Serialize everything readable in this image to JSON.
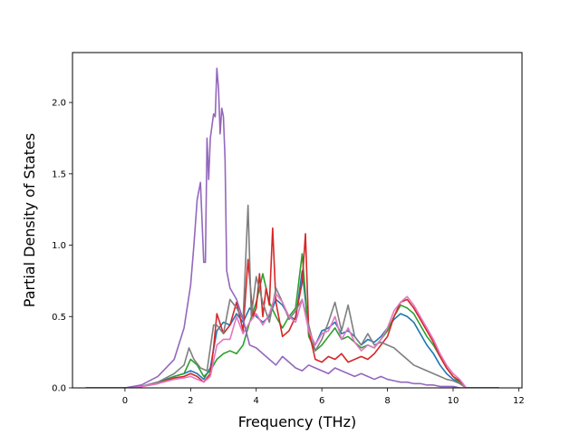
{
  "chart_data": {
    "type": "line",
    "title": "",
    "xlabel": "Frequency (THz)",
    "ylabel": "Partial Density of States",
    "xlim": [
      -1.6,
      12.1
    ],
    "ylim": [
      0.0,
      2.35
    ],
    "xticks": [
      0,
      2,
      4,
      6,
      8,
      10,
      12
    ],
    "yticks": [
      0.0,
      0.5,
      1.0,
      1.5,
      2.0
    ],
    "xtick_labels": [
      "0",
      "2",
      "4",
      "6",
      "8",
      "10",
      "12"
    ],
    "ytick_labels": [
      "0.0",
      "0.5",
      "1.0",
      "1.5",
      "2.0"
    ],
    "grid": false,
    "legend": "none",
    "series": [
      {
        "color": "#1f77b4",
        "x": [
          -1.2,
          0.0,
          0.5,
          1.0,
          1.5,
          1.8,
          2.0,
          2.2,
          2.4,
          2.6,
          2.8,
          3.0,
          3.2,
          3.4,
          3.6,
          3.8,
          4.0,
          4.2,
          4.4,
          4.6,
          4.8,
          5.0,
          5.2,
          5.4,
          5.6,
          5.8,
          6.0,
          6.2,
          6.4,
          6.6,
          6.8,
          7.0,
          7.2,
          7.4,
          7.6,
          7.8,
          8.0,
          8.2,
          8.4,
          8.6,
          8.8,
          9.0,
          9.2,
          9.4,
          9.6,
          9.8,
          10.0,
          10.2,
          10.4,
          11.4
        ],
        "y": [
          0.0,
          0.0,
          0.01,
          0.04,
          0.08,
          0.1,
          0.12,
          0.1,
          0.06,
          0.14,
          0.4,
          0.46,
          0.44,
          0.52,
          0.46,
          0.56,
          0.5,
          0.46,
          0.5,
          0.62,
          0.58,
          0.5,
          0.48,
          0.82,
          0.4,
          0.3,
          0.4,
          0.42,
          0.46,
          0.38,
          0.4,
          0.36,
          0.3,
          0.34,
          0.32,
          0.36,
          0.42,
          0.48,
          0.52,
          0.5,
          0.46,
          0.38,
          0.3,
          0.24,
          0.16,
          0.1,
          0.06,
          0.04,
          0.0,
          0.0
        ]
      },
      {
        "color": "#2ca02c",
        "x": [
          -1.2,
          0.0,
          0.5,
          1.0,
          1.5,
          1.8,
          2.0,
          2.2,
          2.4,
          2.6,
          2.8,
          3.0,
          3.2,
          3.4,
          3.6,
          3.8,
          4.0,
          4.2,
          4.4,
          4.6,
          4.8,
          5.0,
          5.2,
          5.4,
          5.6,
          5.8,
          6.0,
          6.2,
          6.4,
          6.6,
          6.8,
          7.0,
          7.2,
          7.4,
          7.6,
          7.8,
          8.0,
          8.2,
          8.4,
          8.6,
          8.8,
          9.0,
          9.2,
          9.4,
          9.6,
          9.8,
          10.0,
          10.2,
          10.4,
          11.4
        ],
        "y": [
          0.0,
          0.0,
          0.01,
          0.03,
          0.08,
          0.1,
          0.2,
          0.16,
          0.08,
          0.12,
          0.2,
          0.24,
          0.26,
          0.24,
          0.3,
          0.46,
          0.6,
          0.8,
          0.6,
          0.5,
          0.42,
          0.5,
          0.56,
          0.94,
          0.36,
          0.26,
          0.3,
          0.36,
          0.42,
          0.34,
          0.36,
          0.32,
          0.28,
          0.3,
          0.28,
          0.34,
          0.4,
          0.5,
          0.58,
          0.56,
          0.52,
          0.44,
          0.36,
          0.3,
          0.22,
          0.14,
          0.08,
          0.04,
          0.0,
          0.0
        ]
      },
      {
        "color": "#d62728",
        "x": [
          -1.2,
          0.0,
          0.5,
          1.0,
          1.5,
          1.8,
          2.0,
          2.2,
          2.4,
          2.6,
          2.7,
          2.8,
          3.0,
          3.2,
          3.4,
          3.6,
          3.75,
          3.9,
          4.0,
          4.1,
          4.2,
          4.3,
          4.4,
          4.5,
          4.6,
          4.7,
          4.8,
          5.0,
          5.2,
          5.4,
          5.5,
          5.6,
          5.8,
          6.0,
          6.2,
          6.4,
          6.6,
          6.8,
          7.0,
          7.2,
          7.4,
          7.6,
          7.8,
          8.0,
          8.2,
          8.4,
          8.6,
          8.8,
          9.0,
          9.2,
          9.4,
          9.6,
          9.8,
          10.0,
          10.2,
          10.4,
          11.4
        ],
        "y": [
          0.0,
          0.0,
          0.01,
          0.03,
          0.07,
          0.08,
          0.1,
          0.08,
          0.04,
          0.1,
          0.28,
          0.52,
          0.38,
          0.44,
          0.6,
          0.4,
          0.9,
          0.5,
          0.56,
          0.8,
          0.5,
          0.7,
          0.58,
          1.12,
          0.6,
          0.48,
          0.36,
          0.4,
          0.5,
          0.74,
          1.08,
          0.4,
          0.2,
          0.18,
          0.22,
          0.2,
          0.24,
          0.18,
          0.2,
          0.22,
          0.2,
          0.24,
          0.3,
          0.36,
          0.5,
          0.6,
          0.62,
          0.56,
          0.48,
          0.4,
          0.32,
          0.22,
          0.14,
          0.08,
          0.05,
          0.0,
          0.0
        ]
      },
      {
        "color": "#7f7f7f",
        "x": [
          -1.2,
          0.0,
          0.5,
          1.0,
          1.5,
          1.8,
          1.95,
          2.1,
          2.3,
          2.5,
          2.7,
          2.8,
          3.0,
          3.2,
          3.4,
          3.6,
          3.75,
          3.85,
          4.0,
          4.2,
          4.4,
          4.6,
          4.8,
          5.0,
          5.2,
          5.4,
          5.6,
          5.8,
          6.0,
          6.2,
          6.4,
          6.6,
          6.8,
          7.0,
          7.2,
          7.4,
          7.6,
          7.8,
          8.0,
          8.2,
          8.4,
          8.6,
          8.8,
          9.0,
          9.2,
          9.4,
          9.6,
          9.8,
          10.0,
          10.2,
          10.4,
          11.4
        ],
        "y": [
          0.0,
          0.0,
          0.01,
          0.04,
          0.1,
          0.16,
          0.28,
          0.2,
          0.14,
          0.12,
          0.44,
          0.44,
          0.38,
          0.62,
          0.56,
          0.48,
          1.28,
          0.5,
          0.78,
          0.6,
          0.46,
          0.7,
          0.6,
          0.48,
          0.54,
          0.62,
          0.44,
          0.26,
          0.34,
          0.46,
          0.6,
          0.4,
          0.58,
          0.36,
          0.3,
          0.38,
          0.3,
          0.32,
          0.3,
          0.28,
          0.24,
          0.2,
          0.16,
          0.14,
          0.12,
          0.1,
          0.08,
          0.06,
          0.05,
          0.03,
          0.0,
          0.0
        ]
      },
      {
        "color": "#e377c2",
        "x": [
          -1.2,
          0.0,
          0.5,
          1.0,
          1.5,
          1.8,
          2.0,
          2.2,
          2.4,
          2.6,
          2.8,
          3.0,
          3.2,
          3.4,
          3.6,
          3.8,
          4.0,
          4.2,
          4.4,
          4.6,
          4.8,
          5.0,
          5.2,
          5.4,
          5.6,
          5.8,
          6.0,
          6.2,
          6.4,
          6.6,
          6.8,
          7.0,
          7.2,
          7.4,
          7.6,
          7.8,
          8.0,
          8.2,
          8.4,
          8.6,
          8.8,
          9.0,
          9.2,
          9.4,
          9.6,
          9.8,
          10.0,
          10.2,
          10.4,
          11.4
        ],
        "y": [
          0.0,
          0.0,
          0.01,
          0.03,
          0.06,
          0.07,
          0.08,
          0.06,
          0.04,
          0.08,
          0.3,
          0.34,
          0.34,
          0.5,
          0.38,
          0.46,
          0.52,
          0.44,
          0.52,
          0.66,
          0.6,
          0.5,
          0.46,
          0.62,
          0.4,
          0.3,
          0.38,
          0.4,
          0.5,
          0.34,
          0.42,
          0.32,
          0.26,
          0.3,
          0.28,
          0.34,
          0.42,
          0.54,
          0.6,
          0.64,
          0.58,
          0.5,
          0.42,
          0.34,
          0.24,
          0.16,
          0.1,
          0.06,
          0.0,
          0.0
        ]
      },
      {
        "color": "#9467bd",
        "x": [
          -1.2,
          0.0,
          0.5,
          1.0,
          1.5,
          1.8,
          2.0,
          2.1,
          2.2,
          2.3,
          2.4,
          2.45,
          2.5,
          2.55,
          2.6,
          2.7,
          2.75,
          2.8,
          2.85,
          2.9,
          2.95,
          3.0,
          3.05,
          3.1,
          3.2,
          3.4,
          3.6,
          3.8,
          4.0,
          4.2,
          4.4,
          4.6,
          4.8,
          5.0,
          5.2,
          5.4,
          5.6,
          5.8,
          6.0,
          6.2,
          6.4,
          6.6,
          6.8,
          7.0,
          7.2,
          7.4,
          7.6,
          7.8,
          8.0,
          8.2,
          8.4,
          8.6,
          8.8,
          9.0,
          9.2,
          9.4,
          9.6,
          9.8,
          10.0,
          10.2,
          10.4,
          11.4
        ],
        "y": [
          0.0,
          0.0,
          0.02,
          0.08,
          0.2,
          0.42,
          0.72,
          1.0,
          1.32,
          1.44,
          0.88,
          0.88,
          1.75,
          1.46,
          1.75,
          1.92,
          1.9,
          2.24,
          2.1,
          1.78,
          1.96,
          1.9,
          1.6,
          0.82,
          0.7,
          0.62,
          0.48,
          0.3,
          0.28,
          0.24,
          0.2,
          0.16,
          0.22,
          0.18,
          0.14,
          0.12,
          0.16,
          0.14,
          0.12,
          0.1,
          0.14,
          0.12,
          0.1,
          0.08,
          0.1,
          0.08,
          0.06,
          0.08,
          0.06,
          0.05,
          0.04,
          0.04,
          0.03,
          0.03,
          0.02,
          0.02,
          0.01,
          0.01,
          0.01,
          0.0,
          0.0,
          0.0
        ]
      }
    ]
  }
}
